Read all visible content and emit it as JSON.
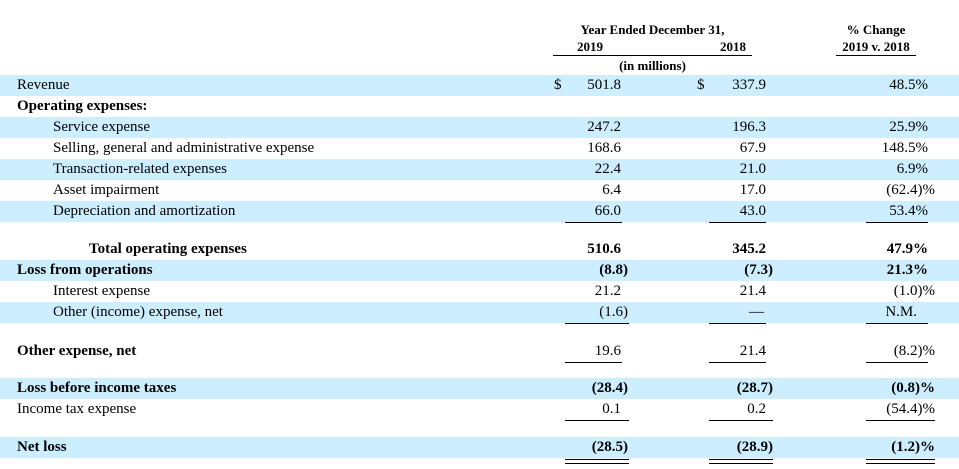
{
  "header": {
    "year_ended": "Year Ended December 31,",
    "col_2019": "2019",
    "col_2018": "2018",
    "in_millions": "(in millions)",
    "pct_change_1": "% Change",
    "pct_change_2": "2019 v. 2018"
  },
  "rows": {
    "revenue": {
      "label": "Revenue",
      "cur1": "$",
      "v2019": "501.8",
      "cur2": "$",
      "v2018": "337.9",
      "pct": "48.5%"
    },
    "opex_header": {
      "label": "Operating expenses:"
    },
    "service": {
      "label": "Service expense",
      "v2019": "247.2",
      "v2018": "196.3",
      "pct": "25.9%"
    },
    "sga": {
      "label": "Selling, general and administrative expense",
      "v2019": "168.6",
      "v2018": "67.9",
      "pct": "148.5%"
    },
    "transaction": {
      "label": "Transaction-related expenses",
      "v2019": "22.4",
      "v2018": "21.0",
      "pct": "6.9%"
    },
    "impairment": {
      "label": "Asset impairment",
      "v2019": "6.4",
      "v2018": "17.0",
      "pct": "(62.4)%"
    },
    "depreciation": {
      "label": "Depreciation and amortization",
      "v2019": "66.0",
      "v2018": "43.0",
      "pct": "53.4%"
    },
    "total_opex": {
      "label": "Total operating expenses",
      "v2019": "510.6",
      "v2018": "345.2",
      "pct": "47.9%"
    },
    "loss_ops": {
      "label": "Loss from operations",
      "v2019": "(8.8)",
      "v2018": "(7.3)",
      "pct": "21.3%"
    },
    "interest": {
      "label": "Interest expense",
      "v2019": "21.2",
      "v2018": "21.4",
      "pct": "(1.0)%"
    },
    "other_income": {
      "label": "Other (income) expense, net",
      "v2019": "(1.6)",
      "v2018": "—",
      "pct": "N.M."
    },
    "other_expense": {
      "label": "Other expense, net",
      "v2019": "19.6",
      "v2018": "21.4",
      "pct": "(8.2)%"
    },
    "loss_before_tax": {
      "label": "Loss before income taxes",
      "v2019": "(28.4)",
      "v2018": "(28.7)",
      "pct": "(0.8)%"
    },
    "tax": {
      "label": "Income tax expense",
      "v2019": "0.1",
      "v2018": "0.2",
      "pct": "(54.4)%"
    },
    "net_loss": {
      "label": "Net loss",
      "v2019": "(28.5)",
      "v2018": "(28.9)",
      "pct": "(1.2)%"
    }
  },
  "colors": {
    "row_shade": "#cceeff"
  }
}
